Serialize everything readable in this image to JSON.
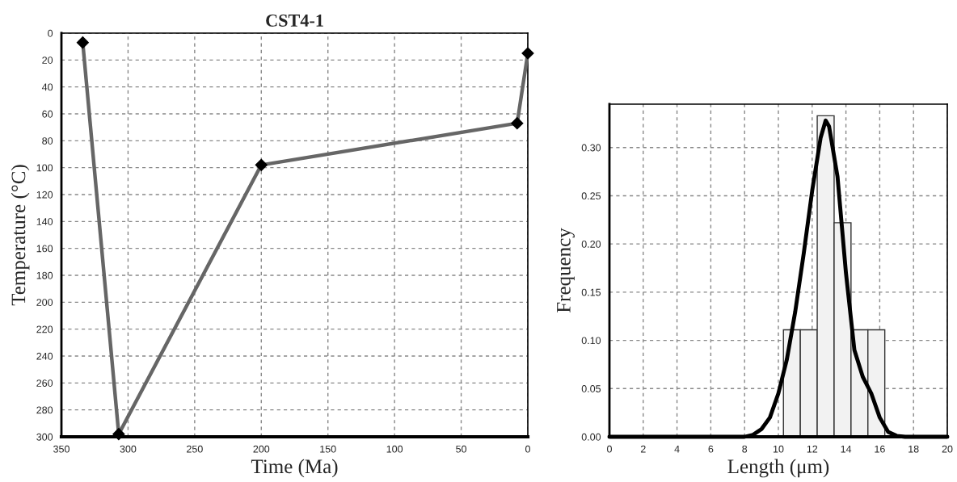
{
  "chart_data": [
    {
      "type": "line",
      "title": "CST4-1",
      "xlabel": "Time (Ma)",
      "ylabel": "Temperature (°C)",
      "x": [
        334,
        307,
        200,
        8,
        0
      ],
      "series": [
        {
          "color": "#666666",
          "values": [
            7,
            298,
            98,
            67,
            15
          ]
        }
      ],
      "marker": "diamond",
      "xlim": [
        350,
        0
      ],
      "xticks": [
        350,
        300,
        250,
        200,
        150,
        100,
        50,
        0
      ],
      "ylim": [
        300,
        0
      ],
      "yticks": [
        0,
        20,
        40,
        60,
        80,
        100,
        120,
        140,
        160,
        180,
        200,
        220,
        240,
        260,
        280,
        300
      ],
      "grid": true
    },
    {
      "type": "histogram",
      "xlabel": "Length (μm)",
      "ylabel": "Frequency",
      "bins": [
        10.3,
        11.3,
        12.3,
        13.3,
        14.3,
        15.3,
        16.3
      ],
      "values": [
        0.111,
        0.111,
        0.333,
        0.222,
        0.111,
        0.111
      ],
      "color": "#f2f2f2",
      "series": [
        {
          "type": "line",
          "color": "#000000",
          "x": [
            0,
            8,
            8.5,
            9,
            9.5,
            10,
            10.5,
            11,
            11.5,
            12,
            12.5,
            12.8,
            13,
            13.5,
            14,
            14.5,
            15,
            15.5,
            16,
            16.5,
            17,
            17.5,
            20
          ],
          "values": [
            0,
            0,
            0.002,
            0.008,
            0.02,
            0.045,
            0.08,
            0.13,
            0.19,
            0.255,
            0.31,
            0.328,
            0.322,
            0.27,
            0.17,
            0.09,
            0.062,
            0.045,
            0.02,
            0.005,
            0.001,
            0,
            0
          ]
        }
      ],
      "xlim": [
        0,
        20
      ],
      "xticks": [
        0,
        2,
        4,
        6,
        8,
        10,
        12,
        14,
        16,
        18,
        20
      ],
      "ylim": [
        0,
        0.345
      ],
      "yticks": [
        {
          "value": 0,
          "label": "0.00"
        },
        {
          "value": 0.05,
          "label": "0.05"
        },
        {
          "value": 0.1,
          "label": "0.10"
        },
        {
          "value": 0.15,
          "label": "0.15"
        },
        {
          "value": 0.2,
          "label": "0.20"
        },
        {
          "value": 0.25,
          "label": "0.25"
        },
        {
          "value": 0.3,
          "label": "0.30"
        }
      ],
      "grid": true
    }
  ]
}
